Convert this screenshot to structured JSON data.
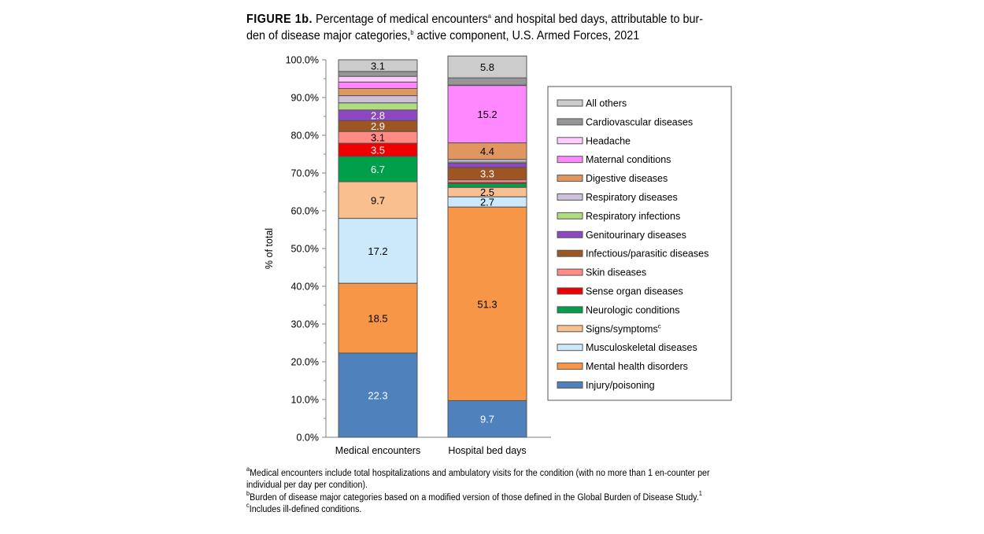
{
  "title": {
    "figure_label": "FIGURE 1b.",
    "part1": " Percentage of medical encounters",
    "sup_a": "a",
    "part2": " and hospital bed days, attributable to bur-den of disease major categories,",
    "sup_b": "b",
    "part3": " active component, U.S. Armed Forces, 2021"
  },
  "footnotes": [
    {
      "mark": "a",
      "text": "Medical encounters include total hospitalizations and ambulatory visits for the condition (with no more than 1 en-counter per individual per day per condition)."
    },
    {
      "mark": "b",
      "text": "Burden of disease major categories based on a modified version of those defined in the Global Burden of Disease Study.",
      "sup_end": "1"
    },
    {
      "mark": "c",
      "text": "Includes ill-defined conditions."
    }
  ],
  "chart_data": {
    "type": "stacked-bar",
    "categories": [
      "Medical encounters",
      "Hospital bed days"
    ],
    "ylabel": "% of total",
    "ylim": [
      0,
      100
    ],
    "yticks": [
      "0.0%",
      "10.0%",
      "20.0%",
      "30.0%",
      "40.0%",
      "50.0%",
      "60.0%",
      "70.0%",
      "80.0%",
      "90.0%",
      "100.0%"
    ],
    "legend_position": "right",
    "series": [
      {
        "name": "Injury/poisoning",
        "color": "#4f81bd",
        "label_color": "#ffffff",
        "values": [
          22.3,
          9.7
        ],
        "labels": [
          "22.3",
          "9.7"
        ]
      },
      {
        "name": "Mental health disorders",
        "color": "#f79646",
        "label_color": "#000000",
        "values": [
          18.5,
          51.3
        ],
        "labels": [
          "18.5",
          "51.3"
        ]
      },
      {
        "name": "Musculoskeletal diseases",
        "color": "#cce9fb",
        "label_color": "#000000",
        "values": [
          17.2,
          2.7
        ],
        "labels": [
          "17.2",
          "2.7"
        ]
      },
      {
        "name": "Signs/symptoms",
        "name_sup": "c",
        "color": "#fabf8f",
        "label_color": "#000000",
        "values": [
          9.7,
          2.5
        ],
        "labels": [
          "9.7",
          "2.5"
        ]
      },
      {
        "name": "Neurologic conditions",
        "color": "#00a04b",
        "label_color": "#ffffff",
        "values": [
          6.7,
          1.0
        ],
        "labels": [
          "6.7",
          null
        ]
      },
      {
        "name": "Sense organ diseases",
        "color": "#ee0000",
        "label_color": "#ffffff",
        "values": [
          3.5,
          0.3
        ],
        "labels": [
          "3.5",
          null
        ]
      },
      {
        "name": "Skin diseases",
        "color": "#ff8a86",
        "label_color": "#000000",
        "values": [
          3.1,
          0.7
        ],
        "labels": [
          "3.1",
          null
        ]
      },
      {
        "name": "Infectious/parasitic diseases",
        "color": "#9c5523",
        "label_color": "#ffffff",
        "values": [
          2.9,
          3.3
        ],
        "labels": [
          "2.9",
          "3.3"
        ]
      },
      {
        "name": "Genitourinary diseases",
        "color": "#8e47c2",
        "label_color": "#ffffff",
        "values": [
          2.8,
          1.1
        ],
        "labels": [
          "2.8",
          null
        ]
      },
      {
        "name": "Respiratory infections",
        "color": "#b0dc80",
        "label_color": "#000000",
        "values": [
          1.9,
          0.3
        ],
        "labels": [
          null,
          null
        ]
      },
      {
        "name": "Respiratory diseases",
        "color": "#ccc0da",
        "label_color": "#000000",
        "values": [
          1.9,
          0.7
        ],
        "labels": [
          null,
          null
        ]
      },
      {
        "name": "Digestive diseases",
        "color": "#e0975f",
        "label_color": "#000000",
        "values": [
          1.9,
          4.4
        ],
        "labels": [
          null,
          "4.4"
        ]
      },
      {
        "name": "Maternal conditions",
        "color": "#ff88ff",
        "label_color": "#000000",
        "values": [
          1.7,
          15.2
        ],
        "labels": [
          null,
          "15.2"
        ]
      },
      {
        "name": "Headache",
        "color": "#ffccff",
        "label_color": "#000000",
        "values": [
          1.5,
          0.1
        ],
        "labels": [
          null,
          null
        ]
      },
      {
        "name": "Cardiovascular diseases",
        "color": "#969696",
        "label_color": "#000000",
        "values": [
          1.3,
          1.9
        ],
        "labels": [
          null,
          null
        ]
      },
      {
        "name": "All others",
        "color": "#cccccc",
        "label_color": "#000000",
        "values": [
          3.1,
          5.8
        ],
        "labels": [
          "3.1",
          "5.8"
        ]
      }
    ]
  }
}
